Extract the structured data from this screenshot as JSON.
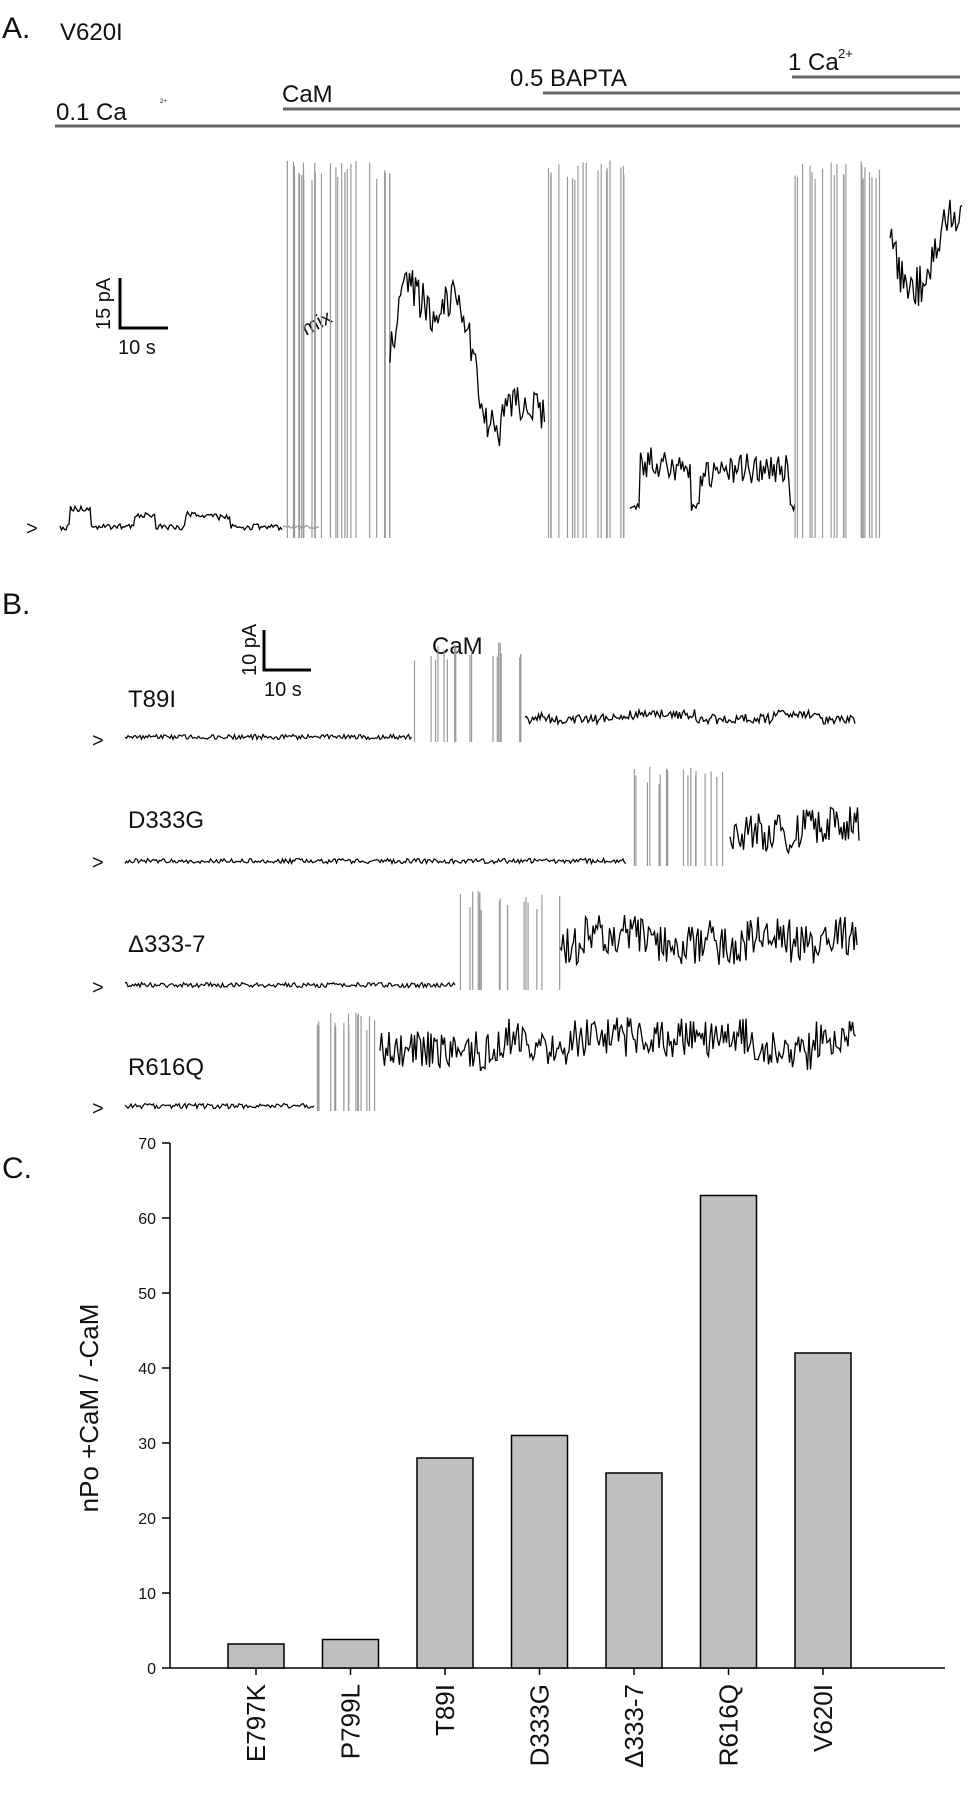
{
  "panelA": {
    "panel_label": "A.",
    "title": "V620I",
    "conditions": {
      "ca01": "0.1 Ca",
      "ca01_sup": "2+",
      "cam": "CaM",
      "bapta": "0.5 BAPTA",
      "ca1": "1 Ca",
      "ca1_sup": "2+"
    },
    "scale_y": "15 pA",
    "scale_x": "10 s",
    "mix_label": "mix",
    "baseline_marker": ">"
  },
  "panelB": {
    "panel_label": "B.",
    "cam_label": "CaM",
    "scale_y": "10 pA",
    "scale_x": "10 s",
    "baseline_marker": ">",
    "traces": [
      {
        "label": "T89I"
      },
      {
        "label": "D333G"
      },
      {
        "label": "Δ333-7"
      },
      {
        "label": "R616Q"
      }
    ]
  },
  "panelC": {
    "panel_label": "C."
  },
  "chart_data": {
    "type": "bar",
    "categories": [
      "E797K",
      "P799L",
      "T89I",
      "D333G",
      "Δ333-7",
      "R616Q",
      "V620I"
    ],
    "values": [
      3.2,
      3.8,
      28,
      31,
      26,
      63,
      42
    ],
    "ylabel": "nPo +CaM / -CaM",
    "ylim": [
      0,
      70
    ],
    "yticks": [
      0,
      10,
      20,
      30,
      40,
      50,
      60,
      70
    ],
    "bar_color": "#bfbfbf",
    "grid": false
  }
}
